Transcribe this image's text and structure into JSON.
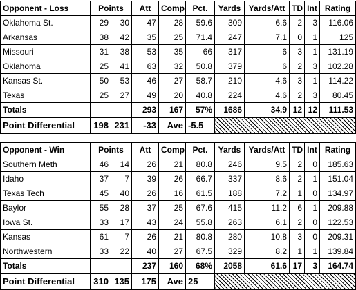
{
  "loss_table": {
    "headers": [
      "Opponent - Loss",
      "Points",
      "Att",
      "Comp",
      "Pct.",
      "Yards",
      "Yards/Att",
      "TD",
      "Int",
      "Rating"
    ],
    "rows": [
      [
        "Oklahoma St.",
        "29",
        "30",
        "47",
        "28",
        "59.6",
        "309",
        "6.6",
        "2",
        "3",
        "116.06"
      ],
      [
        "Arkansas",
        "38",
        "42",
        "35",
        "25",
        "71.4",
        "247",
        "7.1",
        "0",
        "1",
        "125"
      ],
      [
        "Missouri",
        "31",
        "38",
        "53",
        "35",
        "66",
        "317",
        "6",
        "3",
        "1",
        "131.19"
      ],
      [
        "Oklahoma",
        "25",
        "41",
        "63",
        "32",
        "50.8",
        "379",
        "6",
        "2",
        "3",
        "102.28"
      ],
      [
        "Kansas St.",
        "50",
        "53",
        "46",
        "27",
        "58.7",
        "210",
        "4.6",
        "3",
        "1",
        "114.22"
      ],
      [
        "Texas",
        "25",
        "27",
        "49",
        "20",
        "40.8",
        "224",
        "4.6",
        "2",
        "3",
        "80.45"
      ]
    ],
    "totals": [
      "Totals",
      "",
      "",
      "293",
      "167",
      "57%",
      "1686",
      "34.9",
      "12",
      "12",
      "111.53"
    ],
    "differential": {
      "label": "Point Differential",
      "for": "198",
      "against": "231",
      "diff": "-33",
      "ave_label": "Ave",
      "ave_value": "-5.5"
    }
  },
  "win_table": {
    "headers": [
      "Opponent - Win",
      "Points",
      "Att",
      "Comp",
      "Pct.",
      "Yards",
      "Yards/Att",
      "TD",
      "Int",
      "Rating"
    ],
    "rows": [
      [
        "Southern Meth",
        "46",
        "14",
        "26",
        "21",
        "80.8",
        "246",
        "9.5",
        "2",
        "0",
        "185.63"
      ],
      [
        "Idaho",
        "37",
        "7",
        "39",
        "26",
        "66.7",
        "337",
        "8.6",
        "2",
        "1",
        "151.04"
      ],
      [
        "Texas Tech",
        "45",
        "40",
        "26",
        "16",
        "61.5",
        "188",
        "7.2",
        "1",
        "0",
        "134.97"
      ],
      [
        "Baylor",
        "55",
        "28",
        "37",
        "25",
        "67.6",
        "415",
        "11.2",
        "6",
        "1",
        "209.88"
      ],
      [
        "Iowa St.",
        "33",
        "17",
        "43",
        "24",
        "55.8",
        "263",
        "6.1",
        "2",
        "0",
        "122.53"
      ],
      [
        "Kansas",
        "61",
        "7",
        "26",
        "21",
        "80.8",
        "280",
        "10.8",
        "3",
        "0",
        "209.31"
      ],
      [
        "Northwestern",
        "33",
        "22",
        "40",
        "27",
        "67.5",
        "329",
        "8.2",
        "1",
        "1",
        "139.84"
      ]
    ],
    "totals": [
      "Totals",
      "",
      "",
      "237",
      "160",
      "68%",
      "2058",
      "61.6",
      "17",
      "3",
      "164.74"
    ],
    "differential": {
      "label": "Point Differential",
      "for": "310",
      "against": "135",
      "diff": "175",
      "ave_label": "Ave",
      "ave_value": "25"
    }
  }
}
